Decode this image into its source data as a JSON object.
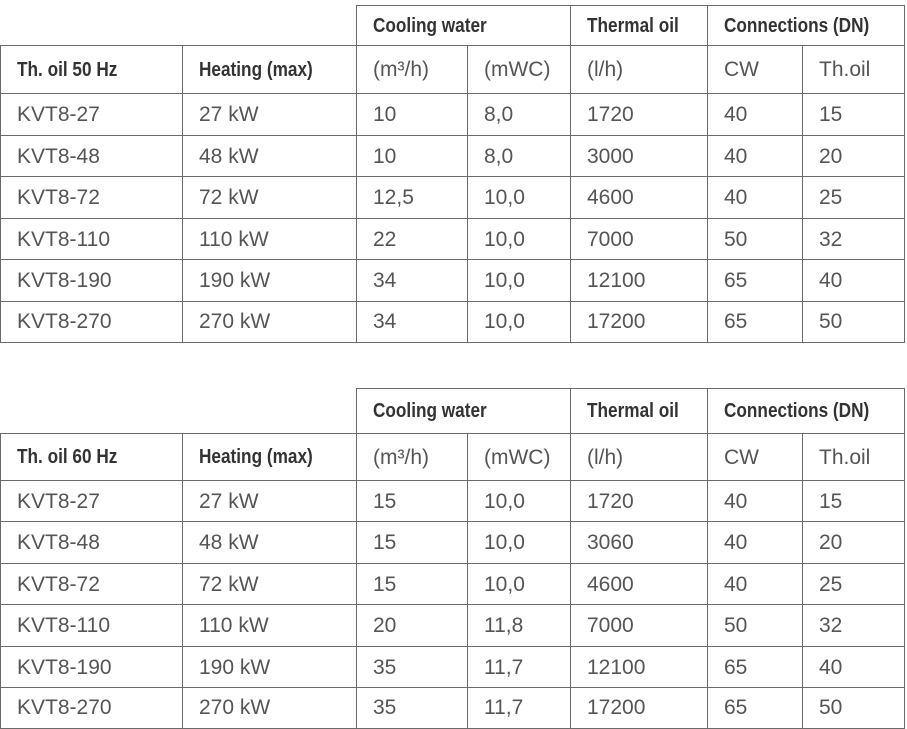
{
  "tables": [
    {
      "group_headers": [
        "Cooling water",
        "Thermal oil",
        "Connections (DN)"
      ],
      "columns": [
        "Th. oil 50 Hz",
        "Heating (max)",
        "(m³/h)",
        "(mWC)",
        "(l/h)",
        "CW",
        "Th.oil"
      ],
      "rows": [
        [
          "KVT8-27",
          "27 kW",
          "10",
          "8,0",
          "1720",
          "40",
          "15"
        ],
        [
          "KVT8-48",
          "48 kW",
          "10",
          "8,0",
          "3000",
          "40",
          "20"
        ],
        [
          "KVT8-72",
          "72 kW",
          "12,5",
          "10,0",
          "4600",
          "40",
          "25"
        ],
        [
          "KVT8-110",
          "110 kW",
          "22",
          "10,0",
          "7000",
          "50",
          "32"
        ],
        [
          "KVT8-190",
          "190 kW",
          "34",
          "10,0",
          "12100",
          "65",
          "40"
        ],
        [
          "KVT8-270",
          "270 kW",
          "34",
          "10,0",
          "17200",
          "65",
          "50"
        ]
      ]
    },
    {
      "group_headers": [
        "Cooling water",
        "Thermal oil",
        "Connections (DN)"
      ],
      "columns": [
        "Th. oil 60 Hz",
        "Heating (max)",
        "(m³/h)",
        "(mWC)",
        "(l/h)",
        "CW",
        "Th.oil"
      ],
      "rows": [
        [
          "KVT8-27",
          "27 kW",
          "15",
          "10,0",
          "1720",
          "40",
          "15"
        ],
        [
          "KVT8-48",
          "48 kW",
          "15",
          "10,0",
          "3060",
          "40",
          "20"
        ],
        [
          "KVT8-72",
          "72 kW",
          "15",
          "10,0",
          "4600",
          "40",
          "25"
        ],
        [
          "KVT8-110",
          "110 kW",
          "20",
          "11,8",
          "7000",
          "50",
          "32"
        ],
        [
          "KVT8-190",
          "190 kW",
          "35",
          "11,7",
          "12100",
          "65",
          "40"
        ],
        [
          "KVT8-270",
          "270 kW",
          "35",
          "11,7",
          "17200",
          "65",
          "50"
        ]
      ]
    }
  ]
}
